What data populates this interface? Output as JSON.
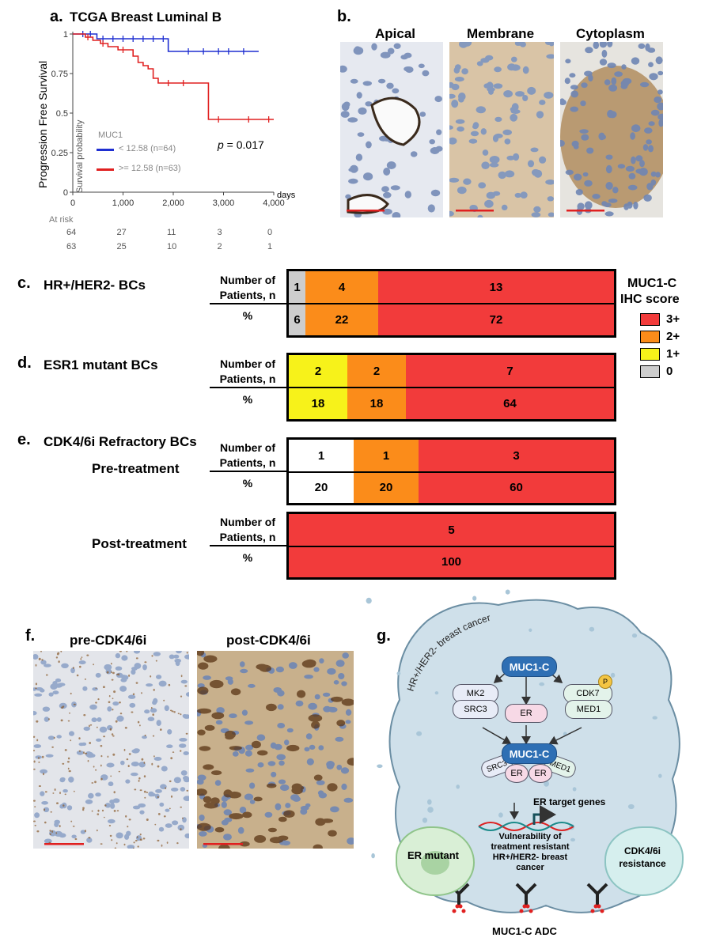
{
  "panel_a": {
    "label": "a.",
    "title": "TCGA Breast  Luminal B",
    "ylabel": "Progression Free Survival",
    "inner_ylabel": "Survival probability",
    "xunit": "days",
    "legend_title": "MUC1",
    "legend": [
      "< 12.58 (n=64)",
      ">= 12.58 (n=63)"
    ],
    "pvalue_prefix": "p",
    "pvalue_rest": " = 0.017",
    "at_risk_label": "At risk",
    "at_risk": [
      [
        "64",
        "27",
        "11",
        "3",
        "0"
      ],
      [
        "63",
        "25",
        "10",
        "2",
        "1"
      ]
    ],
    "colors": {
      "low": "#1f2fd1",
      "high": "#e02020"
    }
  },
  "chart_data": {
    "type": "line",
    "title": "TCGA Breast  Luminal B",
    "xlabel": "days",
    "ylabel": "Progression Free Survival",
    "xlim": [
      0,
      4000
    ],
    "ylim": [
      0,
      1
    ],
    "xticks": [
      "0",
      "1,000",
      "2,000",
      "3,000",
      "4,000"
    ],
    "yticks": [
      "0",
      "0.25",
      "0.5",
      "0.75",
      "1"
    ],
    "series": [
      {
        "name": "< 12.58 (n=64)",
        "x": [
          0,
          480,
          1900,
          1900,
          3700
        ],
        "y": [
          1.0,
          0.97,
          0.97,
          0.89,
          0.89
        ]
      },
      {
        "name": ">= 12.58 (n=63)",
        "x": [
          0,
          250,
          400,
          550,
          700,
          900,
          1200,
          1300,
          1400,
          1500,
          1600,
          1700,
          2600,
          2700,
          4000
        ],
        "y": [
          1.0,
          0.98,
          0.96,
          0.94,
          0.92,
          0.9,
          0.86,
          0.82,
          0.8,
          0.78,
          0.72,
          0.69,
          0.69,
          0.46,
          0.46
        ]
      }
    ]
  },
  "panel_b": {
    "label": "b.",
    "headers": [
      "Apical",
      "Membrane",
      "Cytoplasm"
    ]
  },
  "ihc_legend": {
    "title_line1": "MUC1-C",
    "title_line2": "IHC score",
    "items": [
      {
        "label": "3+",
        "color": "#f23b3b"
      },
      {
        "label": "2+",
        "color": "#fb8c1a"
      },
      {
        "label": "1+",
        "color": "#f7f21a"
      },
      {
        "label": "0",
        "color": "#cdcdcd"
      }
    ]
  },
  "row_labels": {
    "n_line1": "Number of",
    "n_line2": "Patients, n",
    "pct": "%"
  },
  "panel_c": {
    "label": "c.",
    "title": "HR+/HER2- BCs",
    "n": [
      "1",
      "4",
      "13"
    ],
    "pct": [
      "6",
      "22",
      "72"
    ]
  },
  "panel_d": {
    "label": "d.",
    "title": "ESR1 mutant BCs",
    "n": [
      "2",
      "2",
      "7"
    ],
    "pct": [
      "18",
      "18",
      "64"
    ]
  },
  "panel_e": {
    "label": "e.",
    "title": "CDK4/6i Refractory BCs",
    "pre_label": "Pre-treatment",
    "post_label": "Post-treatment",
    "pre_n": [
      "1",
      "1",
      "3"
    ],
    "pre_pct": [
      "20",
      "20",
      "60"
    ],
    "post_n": [
      "5"
    ],
    "post_pct": [
      "100"
    ]
  },
  "panel_f": {
    "label": "f.",
    "headers": [
      "pre-CDK4/6i",
      "post-CDK4/6i"
    ]
  },
  "panel_g": {
    "label": "g.",
    "cell_label": "HR+/HER2- breast cancer",
    "nodes": {
      "muc1c": "MUC1-C",
      "mk2": "MK2",
      "cdk7": "CDK7",
      "p": "P",
      "src3": "SRC3",
      "er": "ER",
      "med1": "MED1",
      "complex_muc1c": "MUC1-C",
      "complex_src3": "SRC3",
      "complex_med1": "MED1",
      "complex_er1": "ER",
      "complex_er2": "ER"
    },
    "target_genes": "ER target genes",
    "vuln_line1": "Vulnerability of",
    "vuln_line2": "treatment resistant",
    "vuln_line3": "HR+/HER2- breast cancer",
    "er_mutant": "ER mutant",
    "cdk_line1": "CDK4/6i",
    "cdk_line2": "resistance",
    "adc": "MUC1-C ADC"
  }
}
